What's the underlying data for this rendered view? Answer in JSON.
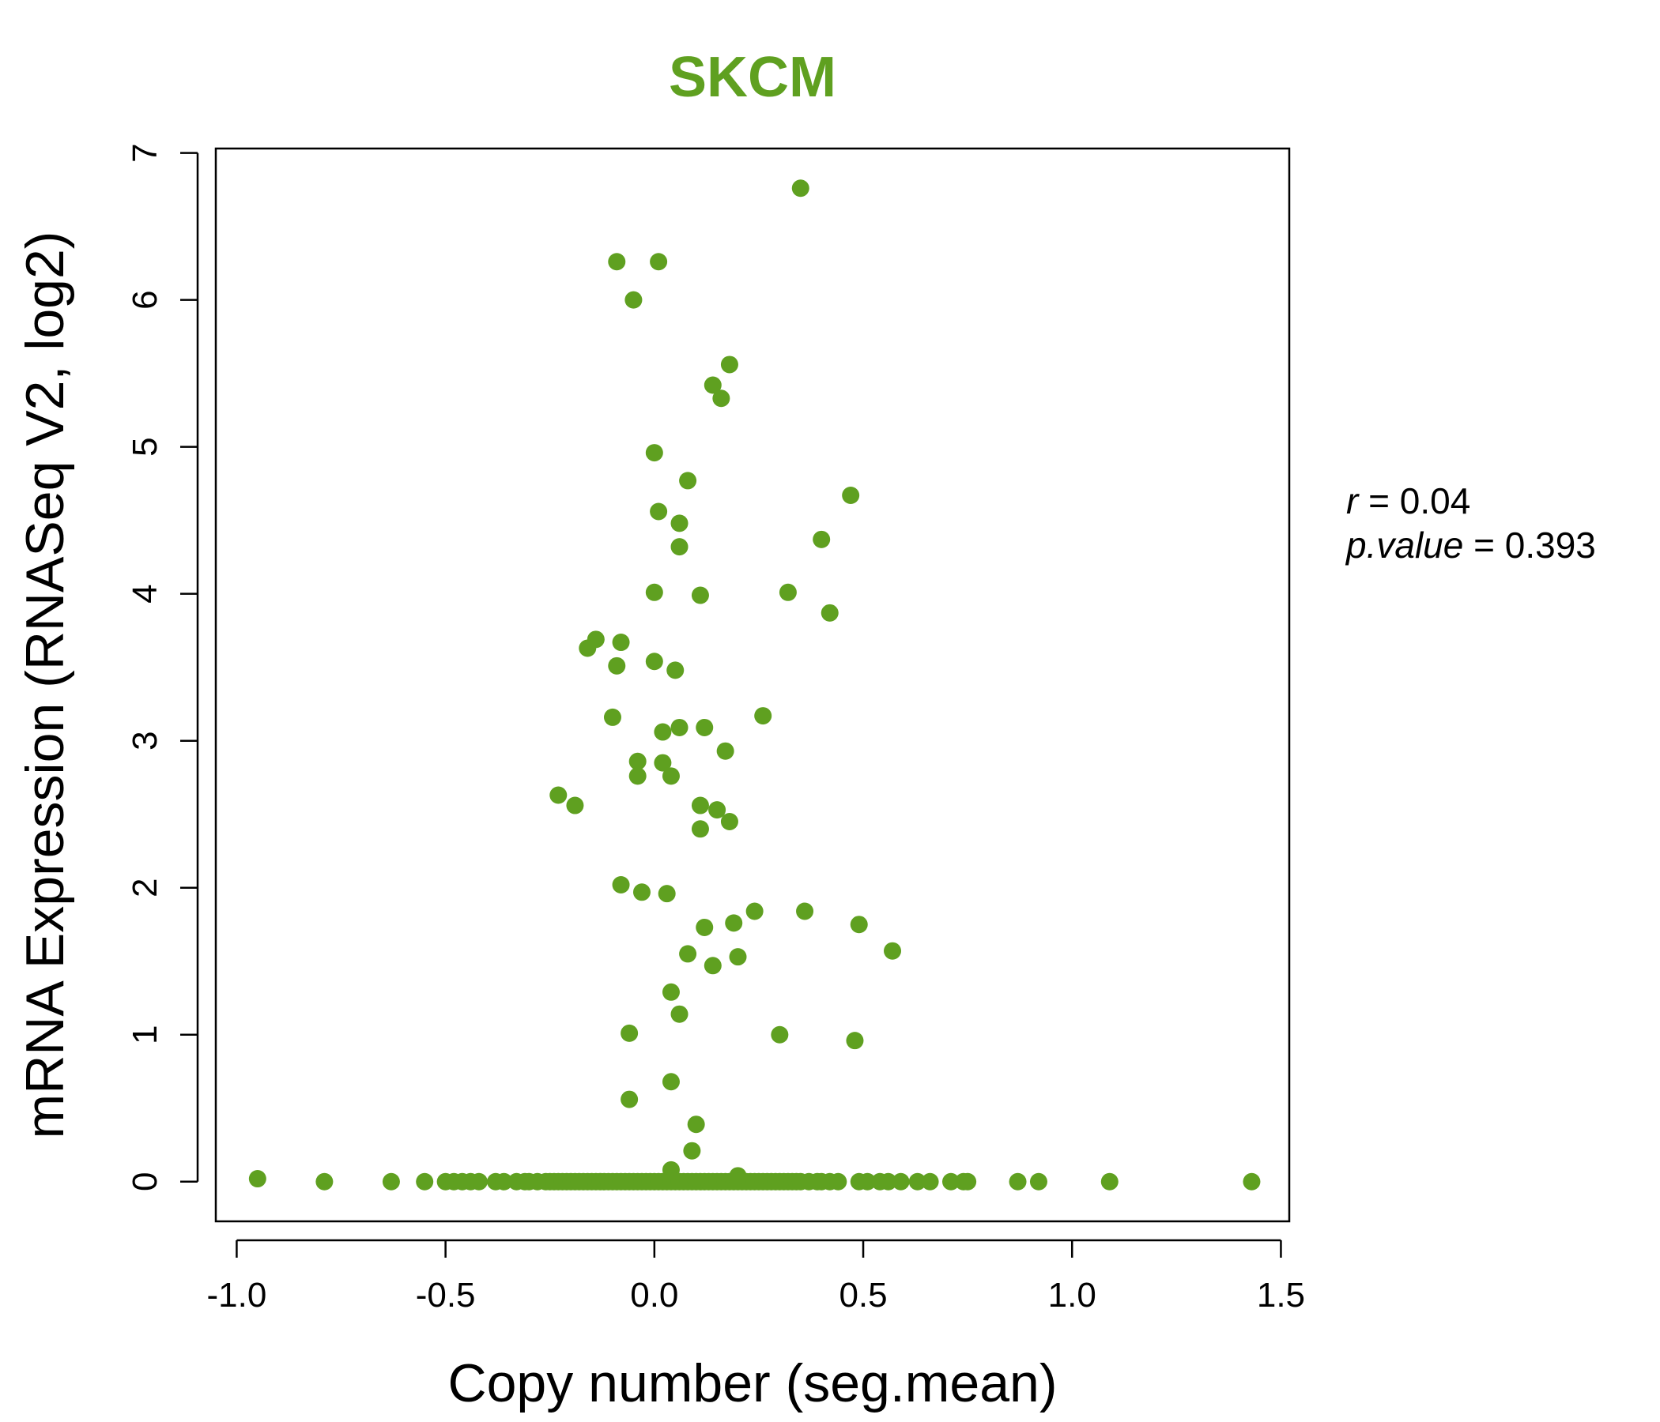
{
  "chart_data": {
    "type": "scatter",
    "title": "SKCM",
    "xlabel": "Copy number (seg.mean)",
    "ylabel": "mRNA Expression (RNASeq V2, log2)",
    "xlim": [
      -1.05,
      1.52
    ],
    "ylim": [
      -0.27,
      7.03
    ],
    "xticks": [
      "-1.0",
      "-0.5",
      "0.0",
      "0.5",
      "1.0",
      "1.5"
    ],
    "xtick_values": [
      -1.0,
      -0.5,
      0.0,
      0.5,
      1.0,
      1.5
    ],
    "yticks": [
      "0",
      "1",
      "2",
      "3",
      "4",
      "5",
      "6",
      "7"
    ],
    "ytick_values": [
      0,
      1,
      2,
      3,
      4,
      5,
      6,
      7
    ],
    "grid": false,
    "point_color": "#5fa020",
    "title_color": "#5fa020",
    "stats": {
      "r_label": "r",
      "r_value": "0.04",
      "p_label": "p.value",
      "p_value": "0.393"
    },
    "points": [
      [
        0.35,
        6.76
      ],
      [
        -0.09,
        6.26
      ],
      [
        0.01,
        6.26
      ],
      [
        -0.05,
        6.0
      ],
      [
        0.18,
        5.56
      ],
      [
        0.14,
        5.42
      ],
      [
        0.16,
        5.33
      ],
      [
        0.0,
        4.96
      ],
      [
        0.08,
        4.77
      ],
      [
        0.47,
        4.67
      ],
      [
        0.01,
        4.56
      ],
      [
        0.06,
        4.48
      ],
      [
        0.4,
        4.37
      ],
      [
        0.06,
        4.32
      ],
      [
        0.0,
        4.01
      ],
      [
        0.32,
        4.01
      ],
      [
        0.11,
        3.99
      ],
      [
        0.42,
        3.87
      ],
      [
        -0.14,
        3.69
      ],
      [
        -0.16,
        3.63
      ],
      [
        -0.08,
        3.67
      ],
      [
        0.0,
        3.54
      ],
      [
        -0.09,
        3.51
      ],
      [
        0.05,
        3.48
      ],
      [
        0.26,
        3.17
      ],
      [
        -0.1,
        3.16
      ],
      [
        0.12,
        3.09
      ],
      [
        0.06,
        3.09
      ],
      [
        0.02,
        3.06
      ],
      [
        0.17,
        2.93
      ],
      [
        -0.04,
        2.86
      ],
      [
        0.02,
        2.85
      ],
      [
        -0.04,
        2.76
      ],
      [
        0.04,
        2.76
      ],
      [
        -0.23,
        2.63
      ],
      [
        -0.19,
        2.56
      ],
      [
        0.11,
        2.56
      ],
      [
        0.15,
        2.53
      ],
      [
        0.18,
        2.45
      ],
      [
        0.11,
        2.4
      ],
      [
        -0.08,
        2.02
      ],
      [
        -0.03,
        1.97
      ],
      [
        0.03,
        1.96
      ],
      [
        0.24,
        1.84
      ],
      [
        0.36,
        1.84
      ],
      [
        0.19,
        1.76
      ],
      [
        0.49,
        1.75
      ],
      [
        0.12,
        1.73
      ],
      [
        0.57,
        1.57
      ],
      [
        0.08,
        1.55
      ],
      [
        0.2,
        1.53
      ],
      [
        0.14,
        1.47
      ],
      [
        0.04,
        1.29
      ],
      [
        0.06,
        1.14
      ],
      [
        -0.06,
        1.01
      ],
      [
        0.3,
        1.0
      ],
      [
        0.48,
        0.96
      ],
      [
        0.04,
        0.68
      ],
      [
        -0.06,
        0.56
      ],
      [
        0.1,
        0.39
      ],
      [
        0.09,
        0.21
      ],
      [
        0.04,
        0.08
      ],
      [
        0.2,
        0.04
      ],
      [
        -0.95,
        0.02
      ],
      [
        -0.79,
        0.0
      ],
      [
        -0.63,
        0.0
      ],
      [
        -0.55,
        0.0
      ],
      [
        -0.5,
        0.0
      ],
      [
        -0.48,
        0.0
      ],
      [
        -0.46,
        0.0
      ],
      [
        -0.44,
        0.0
      ],
      [
        -0.42,
        0.0
      ],
      [
        -0.38,
        0.0
      ],
      [
        -0.36,
        0.0
      ],
      [
        -0.33,
        0.0
      ],
      [
        -0.31,
        0.0
      ],
      [
        -0.3,
        0.0
      ],
      [
        -0.28,
        0.0
      ],
      [
        -0.26,
        0.0
      ],
      [
        -0.25,
        0.0
      ],
      [
        -0.24,
        0.0
      ],
      [
        -0.23,
        0.0
      ],
      [
        -0.22,
        0.0
      ],
      [
        -0.21,
        0.0
      ],
      [
        -0.2,
        0.0
      ],
      [
        -0.19,
        0.0
      ],
      [
        -0.18,
        0.0
      ],
      [
        -0.17,
        0.0
      ],
      [
        -0.16,
        0.0
      ],
      [
        -0.15,
        0.0
      ],
      [
        -0.14,
        0.0
      ],
      [
        -0.13,
        0.0
      ],
      [
        -0.12,
        0.0
      ],
      [
        -0.11,
        0.0
      ],
      [
        -0.1,
        0.0
      ],
      [
        -0.09,
        0.0
      ],
      [
        -0.08,
        0.0
      ],
      [
        -0.07,
        0.0
      ],
      [
        -0.06,
        0.0
      ],
      [
        -0.05,
        0.0
      ],
      [
        -0.04,
        0.0
      ],
      [
        -0.03,
        0.0
      ],
      [
        -0.02,
        0.0
      ],
      [
        -0.01,
        0.0
      ],
      [
        0.0,
        0.0
      ],
      [
        0.01,
        0.0
      ],
      [
        0.02,
        0.0
      ],
      [
        0.03,
        0.0
      ],
      [
        0.04,
        0.0
      ],
      [
        0.05,
        0.0
      ],
      [
        0.06,
        0.0
      ],
      [
        0.07,
        0.0
      ],
      [
        0.08,
        0.0
      ],
      [
        0.09,
        0.0
      ],
      [
        0.1,
        0.0
      ],
      [
        0.11,
        0.0
      ],
      [
        0.12,
        0.0
      ],
      [
        0.13,
        0.0
      ],
      [
        0.14,
        0.0
      ],
      [
        0.15,
        0.0
      ],
      [
        0.16,
        0.0
      ],
      [
        0.17,
        0.0
      ],
      [
        0.18,
        0.0
      ],
      [
        0.19,
        0.0
      ],
      [
        0.2,
        0.0
      ],
      [
        0.21,
        0.0
      ],
      [
        0.22,
        0.0
      ],
      [
        0.23,
        0.0
      ],
      [
        0.24,
        0.0
      ],
      [
        0.25,
        0.0
      ],
      [
        0.26,
        0.0
      ],
      [
        0.27,
        0.0
      ],
      [
        0.28,
        0.0
      ],
      [
        0.29,
        0.0
      ],
      [
        0.3,
        0.0
      ],
      [
        0.31,
        0.0
      ],
      [
        0.32,
        0.0
      ],
      [
        0.33,
        0.0
      ],
      [
        0.34,
        0.0
      ],
      [
        0.35,
        0.0
      ],
      [
        0.37,
        0.0
      ],
      [
        0.39,
        0.0
      ],
      [
        0.4,
        0.0
      ],
      [
        0.42,
        0.0
      ],
      [
        0.44,
        0.0
      ],
      [
        0.49,
        0.0
      ],
      [
        0.51,
        0.0
      ],
      [
        0.54,
        0.0
      ],
      [
        0.56,
        0.0
      ],
      [
        0.59,
        0.0
      ],
      [
        0.63,
        0.0
      ],
      [
        0.66,
        0.0
      ],
      [
        0.71,
        0.0
      ],
      [
        0.74,
        0.0
      ],
      [
        0.75,
        0.0
      ],
      [
        0.87,
        0.0
      ],
      [
        0.92,
        0.0
      ],
      [
        1.09,
        0.0
      ],
      [
        1.43,
        0.0
      ]
    ]
  }
}
